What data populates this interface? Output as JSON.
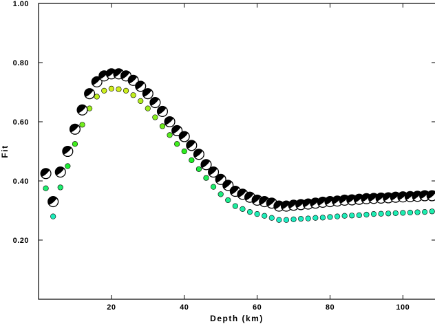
{
  "chart_data": {
    "type": "scatter",
    "title": "",
    "xlabel": "Depth (km)",
    "ylabel": "Fit",
    "xlim": [
      0,
      109
    ],
    "ylim": [
      0,
      1.0
    ],
    "x_ticks": [
      20,
      40,
      60,
      80,
      100
    ],
    "x_tick_labels": [
      "20",
      "40",
      "60",
      "80",
      "100"
    ],
    "y_ticks": [
      0.2,
      0.4,
      0.6,
      0.8,
      1.0
    ],
    "y_tick_labels": [
      "0.20",
      "0.40",
      "0.60",
      "0.80",
      "1.00"
    ],
    "grid": false,
    "legend": "none",
    "series": [
      {
        "marker": "focal-mechanism",
        "x": [
          2,
          4,
          6,
          8,
          10,
          12,
          14,
          16,
          18,
          20,
          22,
          24,
          26,
          28,
          30,
          32,
          34,
          36,
          38,
          40,
          42,
          44,
          46,
          48,
          50,
          52,
          54,
          56,
          58,
          60,
          62,
          64,
          66,
          68,
          70,
          72,
          74,
          76,
          78,
          80,
          82,
          84,
          86,
          88,
          90,
          92,
          94,
          96,
          98,
          100,
          102,
          104,
          106,
          108
        ],
        "y": [
          0.425,
          0.33,
          0.43,
          0.5,
          0.575,
          0.64,
          0.695,
          0.735,
          0.755,
          0.762,
          0.762,
          0.755,
          0.74,
          0.72,
          0.695,
          0.665,
          0.635,
          0.6,
          0.57,
          0.55,
          0.52,
          0.49,
          0.455,
          0.43,
          0.405,
          0.385,
          0.365,
          0.355,
          0.345,
          0.335,
          0.33,
          0.325,
          0.315,
          0.315,
          0.318,
          0.32,
          0.322,
          0.325,
          0.328,
          0.33,
          0.332,
          0.335,
          0.336,
          0.338,
          0.34,
          0.341,
          0.342,
          0.343,
          0.345,
          0.346,
          0.347,
          0.348,
          0.35,
          0.35
        ]
      },
      {
        "marker": "dot",
        "x": [
          2,
          4,
          6,
          8,
          10,
          12,
          14,
          16,
          18,
          20,
          22,
          24,
          26,
          28,
          30,
          32,
          34,
          36,
          38,
          40,
          42,
          44,
          46,
          48,
          50,
          52,
          54,
          56,
          58,
          60,
          62,
          64,
          66,
          68,
          70,
          72,
          74,
          76,
          78,
          80,
          82,
          84,
          86,
          88,
          90,
          92,
          94,
          96,
          98,
          100,
          102,
          104,
          106,
          108
        ],
        "y": [
          0.375,
          0.28,
          0.378,
          0.45,
          0.525,
          0.59,
          0.645,
          0.685,
          0.705,
          0.712,
          0.71,
          0.705,
          0.69,
          0.67,
          0.645,
          0.615,
          0.585,
          0.555,
          0.525,
          0.5,
          0.47,
          0.44,
          0.41,
          0.38,
          0.355,
          0.335,
          0.315,
          0.305,
          0.295,
          0.288,
          0.282,
          0.275,
          0.268,
          0.268,
          0.27,
          0.272,
          0.273,
          0.275,
          0.276,
          0.278,
          0.28,
          0.282,
          0.283,
          0.284,
          0.286,
          0.288,
          0.289,
          0.29,
          0.291,
          0.292,
          0.293,
          0.294,
          0.295,
          0.297
        ]
      }
    ]
  }
}
